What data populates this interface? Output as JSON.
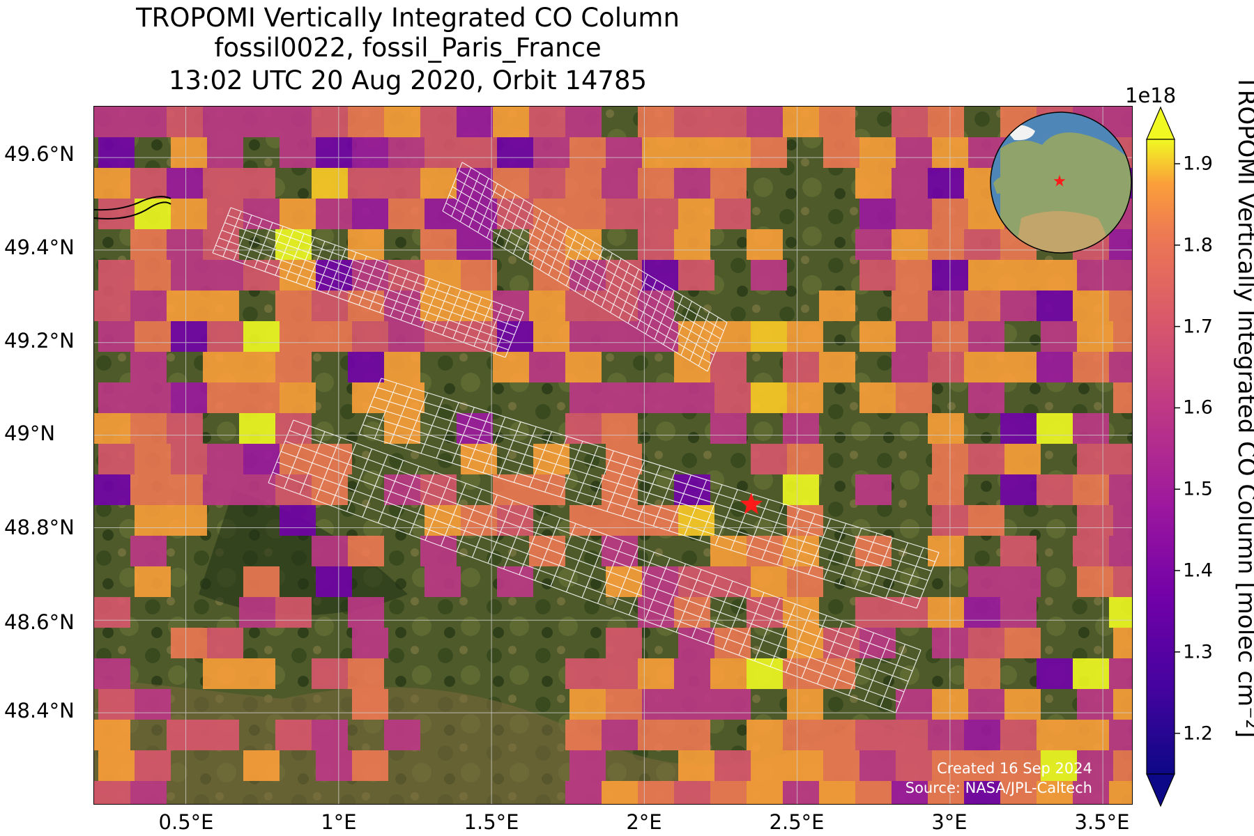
{
  "title": {
    "line1": "TROPOMI Vertically Integrated CO Column",
    "line2": "fossil0022, fossil_Paris_France",
    "line3": "13:02 UTC 20 Aug 2020, Orbit 14785"
  },
  "map": {
    "lon_range": [
      0.2,
      3.6
    ],
    "lat_range": [
      48.2,
      49.71
    ],
    "x_ticks": [
      "0.5°E",
      "1°E",
      "1.5°E",
      "2°E",
      "2.5°E",
      "3°E",
      "3.5°E"
    ],
    "x_tick_values": [
      0.5,
      1.0,
      1.5,
      2.0,
      2.5,
      3.0,
      3.5
    ],
    "y_ticks": [
      "48.4°N",
      "48.6°N",
      "48.8°N",
      "49°N",
      "49.2°N",
      "49.4°N",
      "49.6°N"
    ],
    "y_tick_values": [
      48.4,
      48.6,
      48.8,
      49.0,
      49.2,
      49.4,
      49.6
    ],
    "site_marker": {
      "lon": 2.35,
      "lat": 48.85,
      "color": "#ff1a1a",
      "shape": "star"
    },
    "gridlines": true,
    "basemap": "satellite imagery",
    "overlay": "white target-mode footprint grid",
    "inset": "globe centered on Europe with site star"
  },
  "credits": {
    "created": "Created 16 Sep 2024",
    "source": "Source: NASA/JPL-Caltech"
  },
  "colorbar": {
    "label": "TROPOMI Vertically Integrated CO Column [molec cm⁻²]",
    "exponent": "1e18",
    "min": 1.15,
    "max": 1.93,
    "ticks": [
      "1.2",
      "1.3",
      "1.4",
      "1.5",
      "1.6",
      "1.7",
      "1.8",
      "1.9"
    ],
    "tick_values": [
      1.2,
      1.3,
      1.4,
      1.5,
      1.6,
      1.7,
      1.8,
      1.9
    ],
    "colormap": "plasma",
    "extend": "both"
  }
}
